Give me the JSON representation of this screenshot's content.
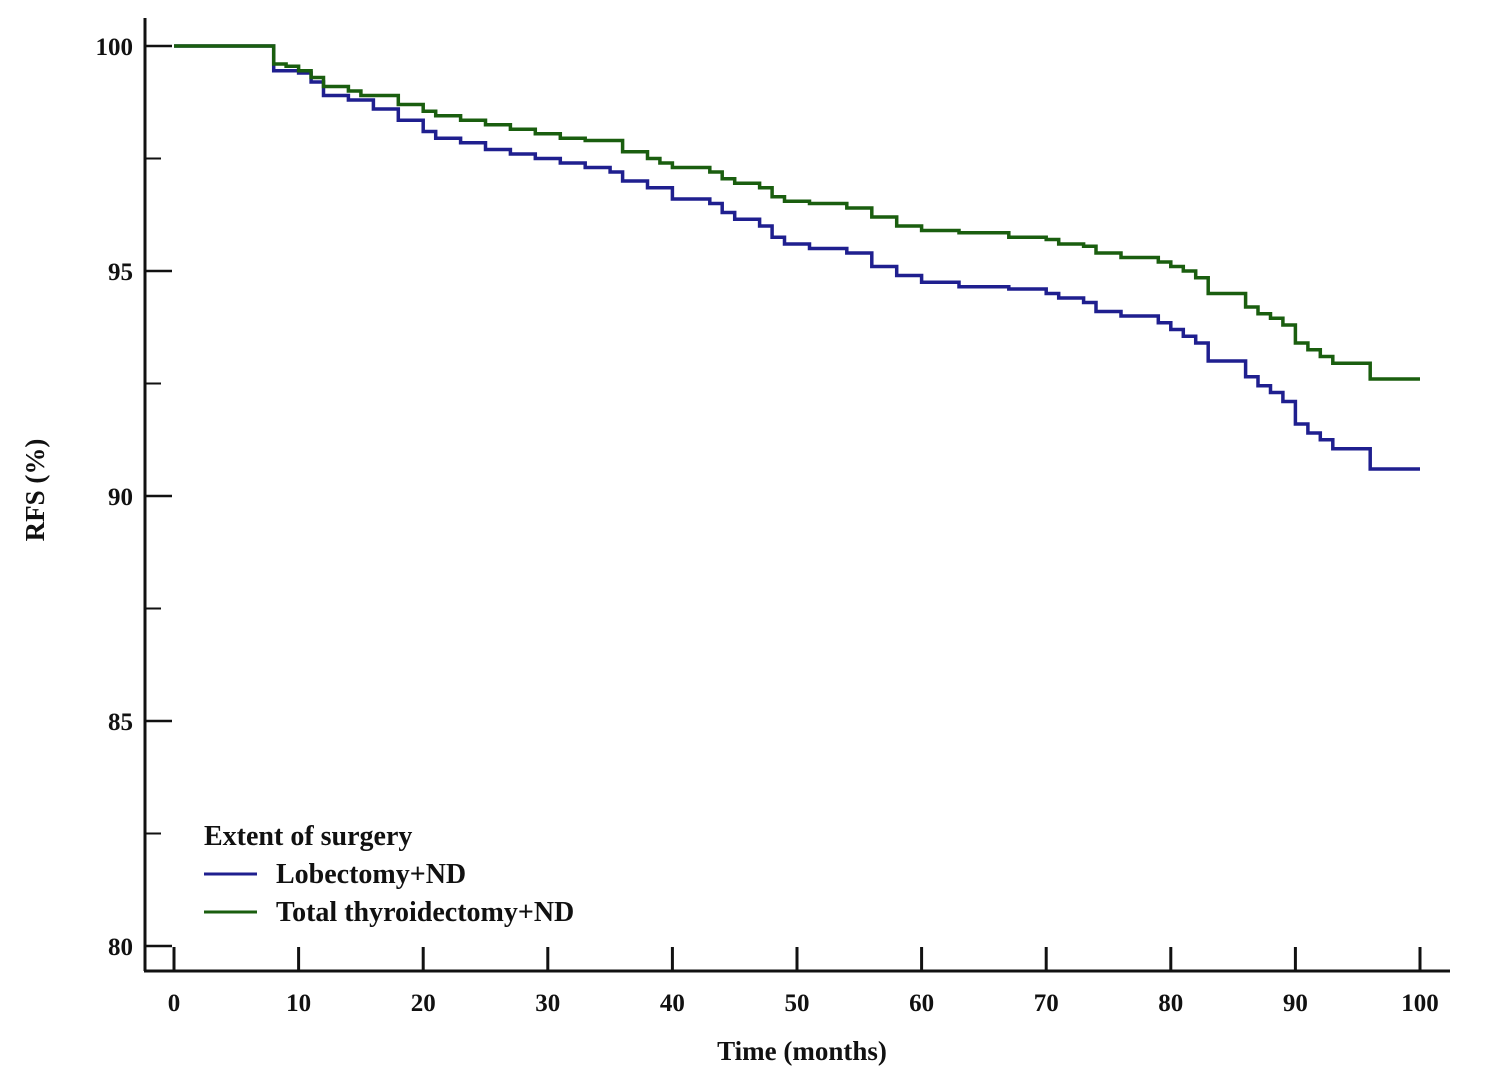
{
  "chart_data": {
    "type": "line",
    "subtype": "kaplan-meier step",
    "title": "",
    "xlabel": "Time (months)",
    "ylabel": "RFS (%)",
    "xlim": [
      0,
      100
    ],
    "ylim": [
      80,
      100
    ],
    "x_ticks": [
      0,
      10,
      20,
      30,
      40,
      50,
      60,
      70,
      80,
      90,
      100
    ],
    "x_tick_labels": [
      "0",
      "10",
      "20",
      "30",
      "40",
      "50",
      "60",
      "70",
      "80",
      "90",
      "100"
    ],
    "y_major_ticks": [
      80,
      85,
      90,
      95,
      100
    ],
    "y_tick_labels": [
      "80",
      "85",
      "90",
      "95",
      "100"
    ],
    "y_minor_ticks": [
      82.5,
      87.5,
      92.5,
      97.5
    ],
    "grid": false,
    "legend": {
      "title": "Extent of surgery",
      "position": "bottom-left",
      "entries": [
        "Lobectomy+ND",
        "Total thyroidectomy+ND"
      ]
    },
    "series": [
      {
        "name": "Lobectomy+ND",
        "color": "#1f1f8f",
        "points": [
          [
            0,
            100
          ],
          [
            8,
            100
          ],
          [
            8,
            99.45
          ],
          [
            10,
            99.4
          ],
          [
            11,
            99.2
          ],
          [
            12,
            98.9
          ],
          [
            14,
            98.8
          ],
          [
            16,
            98.6
          ],
          [
            18,
            98.35
          ],
          [
            20,
            98.1
          ],
          [
            21,
            97.95
          ],
          [
            23,
            97.85
          ],
          [
            25,
            97.7
          ],
          [
            27,
            97.6
          ],
          [
            29,
            97.5
          ],
          [
            31,
            97.4
          ],
          [
            33,
            97.3
          ],
          [
            35,
            97.2
          ],
          [
            36,
            97.0
          ],
          [
            38,
            96.85
          ],
          [
            40,
            96.6
          ],
          [
            43,
            96.5
          ],
          [
            44,
            96.3
          ],
          [
            45,
            96.15
          ],
          [
            47,
            96.0
          ],
          [
            48,
            95.75
          ],
          [
            49,
            95.6
          ],
          [
            51,
            95.5
          ],
          [
            54,
            95.4
          ],
          [
            56,
            95.1
          ],
          [
            58,
            94.9
          ],
          [
            60,
            94.75
          ],
          [
            63,
            94.65
          ],
          [
            67,
            94.6
          ],
          [
            70,
            94.5
          ],
          [
            71,
            94.4
          ],
          [
            73,
            94.3
          ],
          [
            74,
            94.1
          ],
          [
            76,
            94.0
          ],
          [
            79,
            93.85
          ],
          [
            80,
            93.7
          ],
          [
            81,
            93.55
          ],
          [
            82,
            93.4
          ],
          [
            83,
            93.0
          ],
          [
            86,
            92.65
          ],
          [
            87,
            92.45
          ],
          [
            88,
            92.3
          ],
          [
            89,
            92.1
          ],
          [
            90,
            91.6
          ],
          [
            91,
            91.4
          ],
          [
            92,
            91.25
          ],
          [
            93,
            91.05
          ],
          [
            96,
            90.6
          ],
          [
            100,
            90.6
          ]
        ]
      },
      {
        "name": "Total thyroidectomy+ND",
        "color": "#1a5e0f",
        "points": [
          [
            0,
            100
          ],
          [
            8,
            100
          ],
          [
            8,
            99.6
          ],
          [
            9,
            99.55
          ],
          [
            10,
            99.45
          ],
          [
            11,
            99.3
          ],
          [
            12,
            99.1
          ],
          [
            14,
            99.0
          ],
          [
            15,
            98.9
          ],
          [
            18,
            98.7
          ],
          [
            20,
            98.55
          ],
          [
            21,
            98.45
          ],
          [
            23,
            98.35
          ],
          [
            25,
            98.25
          ],
          [
            27,
            98.15
          ],
          [
            29,
            98.05
          ],
          [
            31,
            97.95
          ],
          [
            33,
            97.9
          ],
          [
            36,
            97.65
          ],
          [
            38,
            97.5
          ],
          [
            39,
            97.4
          ],
          [
            40,
            97.3
          ],
          [
            43,
            97.2
          ],
          [
            44,
            97.05
          ],
          [
            45,
            96.95
          ],
          [
            47,
            96.85
          ],
          [
            48,
            96.65
          ],
          [
            49,
            96.55
          ],
          [
            51,
            96.5
          ],
          [
            54,
            96.4
          ],
          [
            56,
            96.2
          ],
          [
            58,
            96.0
          ],
          [
            60,
            95.9
          ],
          [
            63,
            95.85
          ],
          [
            67,
            95.75
          ],
          [
            70,
            95.7
          ],
          [
            71,
            95.6
          ],
          [
            73,
            95.55
          ],
          [
            74,
            95.4
          ],
          [
            76,
            95.3
          ],
          [
            79,
            95.2
          ],
          [
            80,
            95.1
          ],
          [
            81,
            95.0
          ],
          [
            82,
            94.85
          ],
          [
            83,
            94.5
          ],
          [
            86,
            94.2
          ],
          [
            87,
            94.05
          ],
          [
            88,
            93.95
          ],
          [
            89,
            93.8
          ],
          [
            90,
            93.4
          ],
          [
            91,
            93.25
          ],
          [
            92,
            93.1
          ],
          [
            93,
            92.95
          ],
          [
            96,
            92.6
          ],
          [
            100,
            92.6
          ]
        ]
      }
    ]
  }
}
